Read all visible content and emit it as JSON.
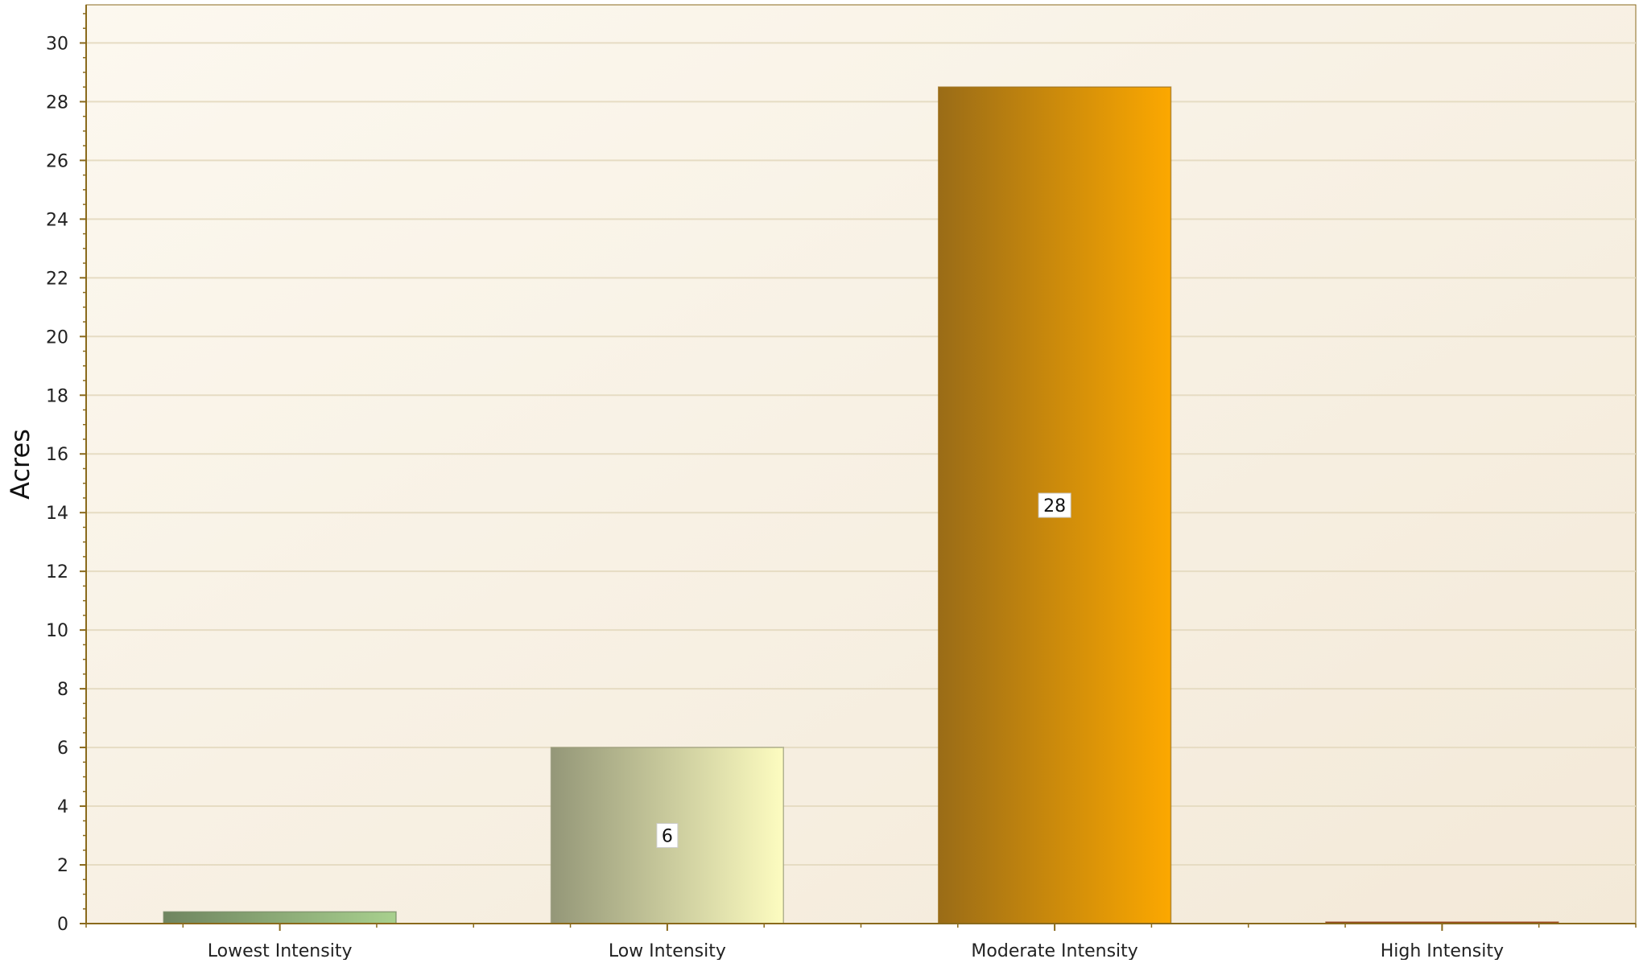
{
  "chart_data": {
    "type": "bar",
    "ylabel": "Acres",
    "ylim": [
      0,
      31.3
    ],
    "ytick_step": 2,
    "yticks": [
      "0",
      "2",
      "4",
      "6",
      "8",
      "10",
      "12",
      "14",
      "16",
      "18",
      "20",
      "22",
      "24",
      "26",
      "28",
      "30"
    ],
    "grid": true,
    "categories": [
      "Lowest Intensity",
      "Low Intensity",
      "Moderate Intensity",
      "High Intensity"
    ],
    "values": [
      0.4,
      6.0,
      28.5,
      0.05
    ],
    "data_labels": [
      "",
      "6",
      "28",
      ""
    ],
    "colors": [
      [
        "#6f8560",
        "#a8d08e"
      ],
      [
        "#949778",
        "#fdfcc0"
      ],
      [
        "#9a6c17",
        "#fca800"
      ],
      [
        "#8b3a12",
        "#c24f14"
      ]
    ],
    "plot_background": [
      "#fcf8ef",
      "#f3e9d8"
    ],
    "grid_color": "#e6dcc3",
    "axis_color": "#8a6a1c"
  }
}
